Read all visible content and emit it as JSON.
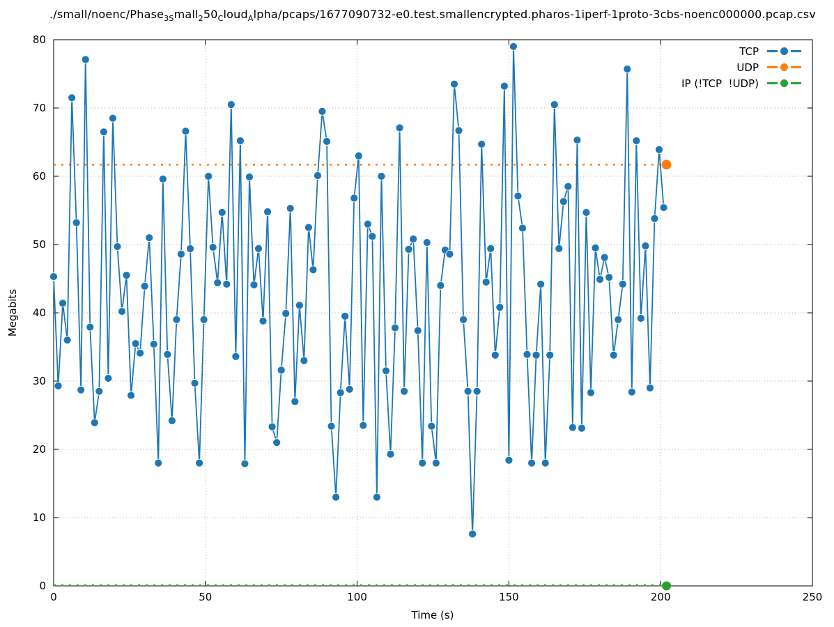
{
  "chart_title": {
    "parts": [
      {
        "text": "./small/noenc/Phase"
      },
      {
        "text": "3S",
        "sub": true
      },
      {
        "text": "mall"
      },
      {
        "text": "2",
        "sub": true
      },
      {
        "text": "50"
      },
      {
        "text": "C",
        "sub": true
      },
      {
        "text": "loud"
      },
      {
        "text": "A",
        "sub": true
      },
      {
        "text": "lpha/pcaps/1677090732-e0.test.smallencrypted.pharos-1iperf-1proto-3cbs-noenc000000.pcap.csv"
      }
    ]
  },
  "legend": {
    "position": "top-right",
    "items": [
      {
        "label": "TCP",
        "color": "#1f77b4"
      },
      {
        "label": "UDP",
        "color": "#ff7f0e"
      },
      {
        "label": "IP (!TCP  !UDP)",
        "color": "#2ca02c"
      }
    ]
  },
  "axes": {
    "xlabel": "Time (s)",
    "ylabel": "Megabits"
  },
  "chart_data": {
    "type": "line",
    "title": "./small/noenc/Phase3Small250CloudAlpha/pcaps/1677090732-e0.test.smallencrypted.pharos-1iperf-1proto-3cbs-noenc000000.pcap.csv",
    "xlabel": "Time (s)",
    "ylabel": "Megabits",
    "xlim": [
      0,
      250
    ],
    "ylim": [
      0,
      80
    ],
    "x_ticks": [
      0,
      50,
      100,
      150,
      200,
      250
    ],
    "y_ticks": [
      0,
      10,
      20,
      30,
      40,
      50,
      60,
      70,
      80
    ],
    "grid": true,
    "grid_color": "#b3b3b3",
    "legend_position": "top-right",
    "series": [
      {
        "name": "TCP",
        "color": "#1f77b4",
        "style": "solid-line-with-markers",
        "t_start": 0,
        "t_step": 1.5,
        "values": [
          45.3,
          29.3,
          41.4,
          36.0,
          71.5,
          53.2,
          28.7,
          77.1,
          37.9,
          23.9,
          28.5,
          66.5,
          30.4,
          68.5,
          49.7,
          40.2,
          45.5,
          27.9,
          35.5,
          34.1,
          43.9,
          51.0,
          35.4,
          18.0,
          59.6,
          33.9,
          24.2,
          39.0,
          48.6,
          66.6,
          49.4,
          29.7,
          18.0,
          39.0,
          60.0,
          49.6,
          44.4,
          54.7,
          44.2,
          70.5,
          33.6,
          65.2,
          17.9,
          59.9,
          44.1,
          49.4,
          38.8,
          54.8,
          23.3,
          21.0,
          31.6,
          39.9,
          55.3,
          27.0,
          41.1,
          33.0,
          52.5,
          46.3,
          60.1,
          69.5,
          65.1,
          23.4,
          13.0,
          28.3,
          39.5,
          28.8,
          56.8,
          63.0,
          23.5,
          53.0,
          51.2,
          13.0,
          60.0,
          31.5,
          19.3,
          37.8,
          67.1,
          28.5,
          49.3,
          50.8,
          37.4,
          18.0,
          50.3,
          23.4,
          18.0,
          44.0,
          49.2,
          48.6,
          73.5,
          66.7,
          39.0,
          28.5,
          7.6,
          28.5,
          64.7,
          44.5,
          49.4,
          33.8,
          40.8,
          73.2,
          18.4,
          79.0,
          57.1,
          52.4,
          33.9,
          18.0,
          33.8,
          44.2,
          18.0,
          33.8,
          70.5,
          49.4,
          56.3,
          58.5,
          23.2,
          65.3,
          23.1,
          54.7,
          28.3,
          49.5,
          44.9,
          48.1,
          45.2,
          33.8,
          39.0,
          44.2,
          75.7,
          28.4,
          65.2,
          39.2,
          49.8,
          29.0,
          53.8,
          63.9,
          55.4
        ]
      },
      {
        "name": "UDP",
        "color": "#ff7f0e",
        "style": "dashed-line-with-end-marker",
        "constant_value": 61.7,
        "x_range": [
          0,
          201
        ]
      },
      {
        "name": "IP (!TCP  !UDP)",
        "color": "#2ca02c",
        "style": "dashed-line-with-end-marker",
        "constant_value": 0,
        "x_range": [
          0,
          201
        ]
      }
    ]
  }
}
